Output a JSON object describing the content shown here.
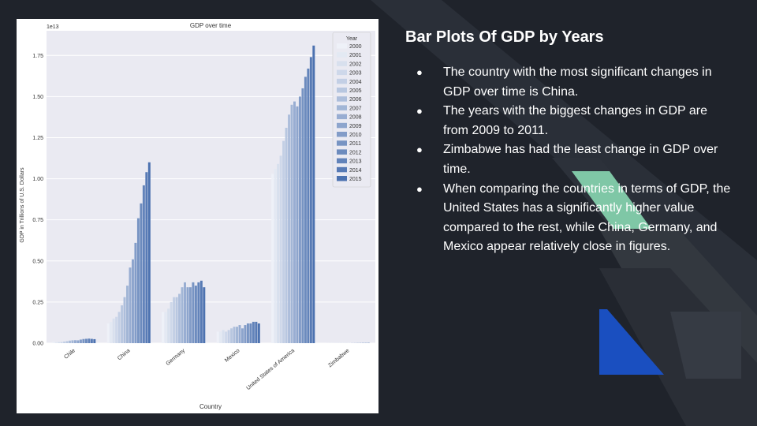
{
  "slide": {
    "title": "Bar Plots Of GDP by Years",
    "bullets": [
      "The country with the most significant changes in GDP over time is China.",
      "The years with the biggest changes in GDP are from 2009 to 2011.",
      "Zimbabwe has had the least change in GDP over time.",
      "When comparing the countries in terms of GDP, the United States has a significantly higher value compared to the rest, while China, Germany, and Mexico appear relatively close in figures."
    ],
    "bullet_glyph": "●"
  },
  "colors": {
    "background": "#1f232b",
    "text": "#ffffff",
    "accent_green": "#7fc7a6",
    "accent_blue": "#1a4fc0",
    "plot_bg": "#eaeaf2",
    "bar_light": "#eef1f8",
    "bar_dark": "#4c72b0"
  },
  "chart_data": {
    "type": "bar",
    "title": "GDP over time",
    "xlabel": "Country",
    "ylabel": "GDP in Trillions of U.S. Dollars",
    "offset_text": "1e13",
    "ylim": [
      0,
      1.9
    ],
    "yticks": [
      0.0,
      0.25,
      0.5,
      0.75,
      1.0,
      1.25,
      1.5,
      1.75
    ],
    "ytick_labels": [
      "0.00",
      "0.25",
      "0.50",
      "0.75",
      "1.00",
      "1.25",
      "1.50",
      "1.75"
    ],
    "grid": true,
    "legend_title": "Year",
    "legend_position": "top-right",
    "categories": [
      "Chile",
      "China",
      "Germany",
      "Mexico",
      "United States of America",
      "Zimbabwe"
    ],
    "series": [
      {
        "name": "2000",
        "values": [
          0.0078,
          0.12,
          0.19,
          0.07,
          1.03,
          0.0007
        ]
      },
      {
        "name": "2001",
        "values": [
          0.0071,
          0.13,
          0.19,
          0.07,
          1.06,
          0.0007
        ]
      },
      {
        "name": "2002",
        "values": [
          0.007,
          0.15,
          0.21,
          0.08,
          1.09,
          0.0006
        ]
      },
      {
        "name": "2003",
        "values": [
          0.0076,
          0.16,
          0.25,
          0.07,
          1.14,
          0.0006
        ]
      },
      {
        "name": "2004",
        "values": [
          0.01,
          0.19,
          0.28,
          0.08,
          1.23,
          0.0006
        ]
      },
      {
        "name": "2005",
        "values": [
          0.0123,
          0.23,
          0.28,
          0.09,
          1.31,
          0.0006
        ]
      },
      {
        "name": "2006",
        "values": [
          0.0155,
          0.28,
          0.3,
          0.1,
          1.39,
          0.0005
        ]
      },
      {
        "name": "2007",
        "values": [
          0.0173,
          0.35,
          0.34,
          0.1,
          1.45,
          0.0005
        ]
      },
      {
        "name": "2008",
        "values": [
          0.018,
          0.46,
          0.37,
          0.11,
          1.47,
          0.0004
        ]
      },
      {
        "name": "2009",
        "values": [
          0.0172,
          0.51,
          0.34,
          0.09,
          1.44,
          0.0008
        ]
      },
      {
        "name": "2010",
        "values": [
          0.0218,
          0.61,
          0.34,
          0.11,
          1.5,
          0.001
        ]
      },
      {
        "name": "2011",
        "values": [
          0.0252,
          0.76,
          0.37,
          0.12,
          1.55,
          0.0012
        ]
      },
      {
        "name": "2012",
        "values": [
          0.0266,
          0.85,
          0.35,
          0.12,
          1.62,
          0.0013
        ]
      },
      {
        "name": "2013",
        "values": [
          0.0278,
          0.96,
          0.37,
          0.13,
          1.67,
          0.0015
        ]
      },
      {
        "name": "2014",
        "values": [
          0.0261,
          1.04,
          0.38,
          0.13,
          1.74,
          0.0015
        ]
      },
      {
        "name": "2015",
        "values": [
          0.0243,
          1.1,
          0.34,
          0.12,
          1.81,
          0.0016
        ]
      }
    ]
  }
}
